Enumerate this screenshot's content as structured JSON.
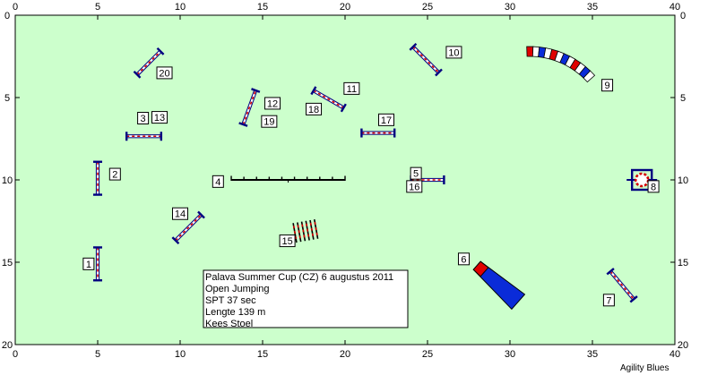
{
  "course": {
    "arena": {
      "width_m": 40,
      "height_m": 20,
      "x_ticks": [
        0,
        5,
        10,
        15,
        20,
        25,
        30,
        35,
        40
      ],
      "y_ticks": [
        0,
        5,
        10,
        15,
        20
      ]
    },
    "colors": {
      "field": "#ccffcc",
      "bar_dark": "#000080",
      "pole_red": "#d40000",
      "tunnel_blue": "#0a2bd8",
      "tunnel_red": "#e00000",
      "outline": "#000000"
    },
    "info": {
      "lines": [
        "Palava Summer Cup (CZ) 6 augustus 2011",
        "Open Jumping",
        "SPT 37 sec",
        "Lengte 139 m",
        "Kees Stoel"
      ]
    },
    "credit": "Agility Blues",
    "obstacles": [
      {
        "kind": "jump",
        "labels": [
          "1"
        ],
        "center": [
          5,
          15.1
        ],
        "angle_deg": 90,
        "length_m": 2.0
      },
      {
        "kind": "jump",
        "labels": [
          "2"
        ],
        "center": [
          5,
          9.9
        ],
        "angle_deg": 90,
        "length_m": 2.0
      },
      {
        "kind": "jump",
        "labels": [
          "3",
          "13"
        ],
        "center": [
          7.8,
          7.35
        ],
        "angle_deg": 0,
        "length_m": 2.1
      },
      {
        "kind": "walk",
        "labels": [
          "4"
        ],
        "from": [
          13.1,
          10
        ],
        "to": [
          20,
          10
        ]
      },
      {
        "kind": "jump",
        "labels": [
          "5",
          "16"
        ],
        "center": [
          25,
          10
        ],
        "angle_deg": 0,
        "length_m": 2.0
      },
      {
        "kind": "tunnel_straight",
        "labels": [
          "6"
        ],
        "from": [
          28,
          15.2
        ],
        "to": [
          30.5,
          17.4
        ]
      },
      {
        "kind": "jump",
        "labels": [
          "7"
        ],
        "center": [
          36.8,
          16.4
        ],
        "angle_deg": 50,
        "length_m": 2.2
      },
      {
        "kind": "tire",
        "labels": [
          "8"
        ],
        "center": [
          38,
          10
        ]
      },
      {
        "kind": "tunnel_curved",
        "labels": [
          "9"
        ],
        "center": [
          31.2,
          7.2
        ],
        "radius_m": 5.0,
        "start_deg": -92,
        "end_deg": -42
      },
      {
        "kind": "jump",
        "labels": [
          "10"
        ],
        "center": [
          24.9,
          2.7
        ],
        "angle_deg": 45,
        "length_m": 2.2
      },
      {
        "kind": "jump",
        "labels": [
          "11",
          "18"
        ],
        "center": [
          19,
          5.1
        ],
        "angle_deg": 30,
        "length_m": 2.1
      },
      {
        "kind": "jump",
        "labels": [
          "12",
          "19"
        ],
        "center": [
          14.2,
          5.6
        ],
        "angle_deg": -70,
        "length_m": 2.2
      },
      {
        "kind": "jump",
        "labels": [
          "14"
        ],
        "center": [
          10.5,
          12.9
        ],
        "angle_deg": -45,
        "length_m": 2.2
      },
      {
        "kind": "weave",
        "labels": [
          "15"
        ],
        "center": [
          17.6,
          13.1
        ]
      },
      {
        "kind": "jump",
        "labels": [
          "17"
        ],
        "center": [
          22,
          7.15
        ],
        "angle_deg": 0,
        "length_m": 2.0
      },
      {
        "kind": "jump",
        "labels": [
          "20"
        ],
        "center": [
          8.1,
          2.9
        ],
        "angle_deg": -45,
        "length_m": 2.0
      }
    ],
    "number_boxes": [
      {
        "text": "1",
        "pos": [
          4.45,
          15.1
        ]
      },
      {
        "text": "2",
        "pos": [
          6.05,
          9.65
        ]
      },
      {
        "text": "3",
        "pos": [
          7.75,
          6.25
        ]
      },
      {
        "text": "13",
        "pos": [
          8.75,
          6.2
        ]
      },
      {
        "text": "4",
        "pos": [
          12.3,
          10.1
        ]
      },
      {
        "text": "5",
        "pos": [
          24.3,
          9.6
        ]
      },
      {
        "text": "16",
        "pos": [
          24.2,
          10.4
        ]
      },
      {
        "text": "6",
        "pos": [
          27.2,
          14.8
        ]
      },
      {
        "text": "7",
        "pos": [
          36,
          17.3
        ]
      },
      {
        "text": "8",
        "pos": [
          38.7,
          10.4
        ]
      },
      {
        "text": "9",
        "pos": [
          35.9,
          4.25
        ]
      },
      {
        "text": "10",
        "pos": [
          26.6,
          2.25
        ]
      },
      {
        "text": "11",
        "pos": [
          20.4,
          4.45
        ]
      },
      {
        "text": "18",
        "pos": [
          18.1,
          5.7
        ]
      },
      {
        "text": "12",
        "pos": [
          15.6,
          5.35
        ]
      },
      {
        "text": "19",
        "pos": [
          15.4,
          6.45
        ]
      },
      {
        "text": "14",
        "pos": [
          10,
          12.05
        ]
      },
      {
        "text": "15",
        "pos": [
          16.5,
          13.7
        ]
      },
      {
        "text": "17",
        "pos": [
          22.5,
          6.35
        ]
      },
      {
        "text": "20",
        "pos": [
          9.05,
          3.5
        ]
      }
    ]
  }
}
